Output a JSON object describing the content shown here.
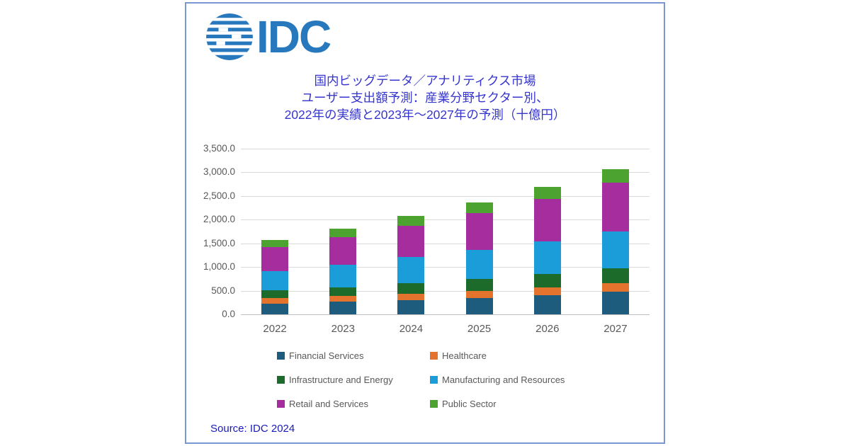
{
  "brand": {
    "logo_text": "IDC"
  },
  "title": {
    "line1": "国内ビッグデータ／アナリティクス市場",
    "line2": "ユーザー支出額予測：産業分野セクター別、",
    "line3": "2022年の実績と2023年～2027年の予測（十億円）"
  },
  "source_note": "Source: IDC 2024",
  "colors": {
    "card_border": "#7b97d1",
    "logo_blue": "#2878be",
    "title_blue": "#3535ce",
    "source_blue": "#1a1ab8",
    "axis_text": "#595959",
    "gridline": "#d9d9d9",
    "baseline": "#bfbfbf"
  },
  "chart_data": {
    "type": "bar",
    "stacked": true,
    "title": "国内ビッグデータ／アナリティクス市場 ユーザー支出額予測：産業分野セクター別、2022年の実績と2023年～2027年の予測（十億円）",
    "unit": "十億円",
    "categories": [
      "2022",
      "2023",
      "2024",
      "2025",
      "2026",
      "2027"
    ],
    "series": [
      {
        "name": "Financial Services",
        "color": "#1e5c7e",
        "values": [
          230,
          265,
          305,
          350,
          410,
          475
        ]
      },
      {
        "name": "Healthcare",
        "color": "#e4732e",
        "values": [
          115,
          120,
          130,
          150,
          165,
          190
        ]
      },
      {
        "name": "Infrastructure and Energy",
        "color": "#1d6b2a",
        "values": [
          160,
          180,
          225,
          250,
          275,
          310
        ]
      },
      {
        "name": "Manufacturing and Resources",
        "color": "#1b9dd9",
        "values": [
          410,
          480,
          545,
          615,
          690,
          775
        ]
      },
      {
        "name": "Retail and Services",
        "color": "#a62d9e",
        "values": [
          505,
          590,
          670,
          775,
          895,
          1025
        ]
      },
      {
        "name": "Public Sector",
        "color": "#4da32f",
        "values": [
          150,
          170,
          200,
          225,
          250,
          285
        ]
      }
    ],
    "ylim": [
      0,
      3500
    ],
    "ytick_step": 500,
    "ytick_labels": [
      "0.0",
      "500.0",
      "1,000.0",
      "1,500.0",
      "2,000.0",
      "2,500.0",
      "3,000.0",
      "3,500.0"
    ],
    "grid": true,
    "legend_position": "bottom"
  }
}
